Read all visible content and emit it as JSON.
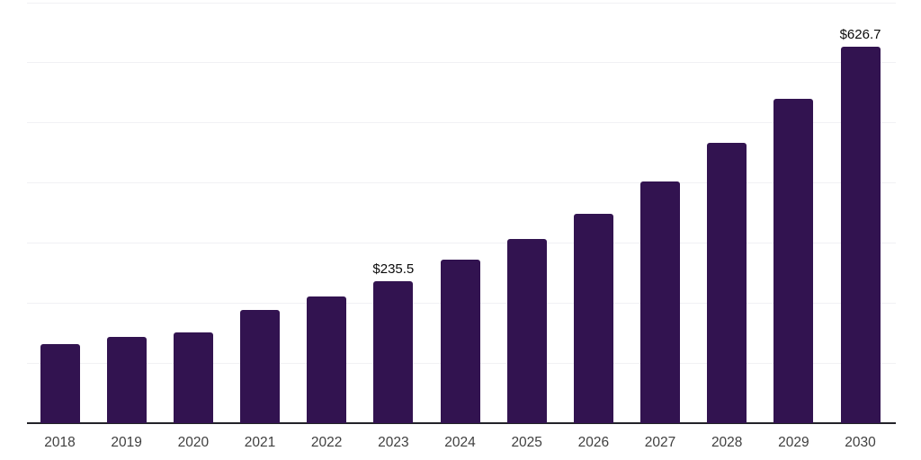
{
  "chart_data": {
    "type": "bar",
    "title": "",
    "xlabel": "",
    "ylabel": "",
    "categories": [
      "2018",
      "2019",
      "2020",
      "2021",
      "2022",
      "2023",
      "2024",
      "2025",
      "2026",
      "2027",
      "2028",
      "2029",
      "2030"
    ],
    "values": [
      131,
      144,
      151,
      189,
      211,
      235.5,
      272,
      306,
      348,
      402,
      466,
      539,
      626.7
    ],
    "data_labels": {
      "2023": "$235.5",
      "2030": "$626.7"
    },
    "value_prefix": "$",
    "ylim": [
      0,
      700
    ],
    "gridline_values": [
      100,
      200,
      300,
      400,
      500,
      600,
      700
    ],
    "grid": true,
    "legend": false,
    "y_axis_ticks_visible": false,
    "colors": {
      "bar": "#321350",
      "gridline": "#f1f1f4",
      "axis_line": "#232329",
      "x_tick_label": "#404040",
      "data_label": "#0a0a0a",
      "background": "#ffffff"
    }
  }
}
